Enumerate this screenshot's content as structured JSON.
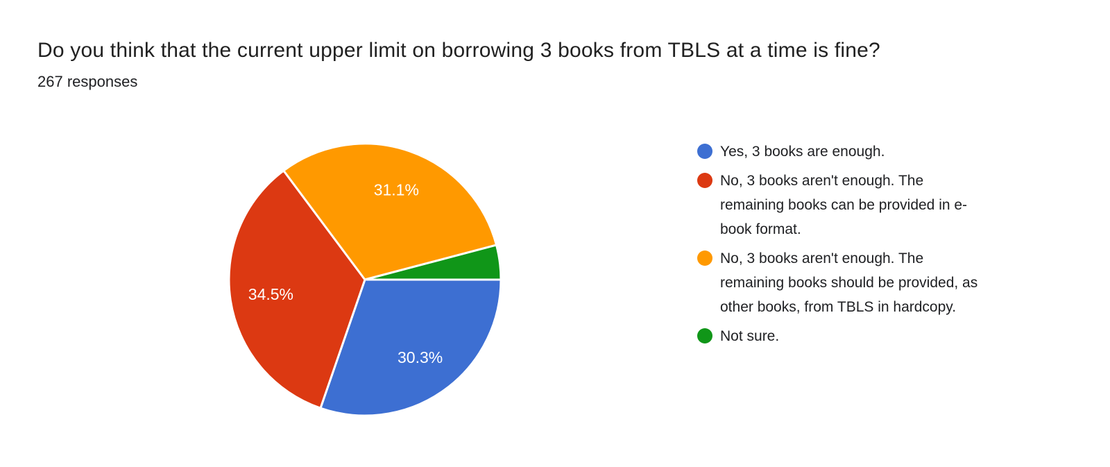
{
  "chart_data": {
    "type": "pie",
    "title": "Do you think that the current upper limit on borrowing 3 books from TBLS at a time is fine?",
    "subtitle": "267 responses",
    "legend_position": "right",
    "start_angle_deg": 90,
    "direction": "clockwise",
    "background_color": "#ffffff",
    "slice_border_color": "#ffffff",
    "slice_label_color": "#ffffff",
    "label_radius_fraction": 0.7,
    "series": [
      {
        "name": "Yes, 3 books are enough.",
        "value_pct": 30.3,
        "color": "#3D6FD2",
        "slice_label": "30.3%",
        "legend_lines": [
          "Yes, 3 books are enough."
        ]
      },
      {
        "name": "No, 3 books aren't enough. The remaining books can be provided in e-book format.",
        "value_pct": 34.5,
        "color": "#DC3912",
        "slice_label": "34.5%",
        "legend_lines": [
          "No, 3 books aren't enough. The",
          "remaining books can be provided in e-",
          "book format."
        ]
      },
      {
        "name": "No, 3 books aren't enough. The remaining books should be provided, as other books, from TBLS in hardcopy.",
        "value_pct": 31.1,
        "color": "#FF9900",
        "slice_label": "31.1%",
        "legend_lines": [
          "No, 3 books aren't enough. The",
          "remaining books should be provided, as",
          "other books, from TBLS in hardcopy."
        ]
      },
      {
        "name": "Not sure.",
        "value_pct": 4.1,
        "color": "#109618",
        "slice_label": "",
        "legend_lines": [
          "Not sure."
        ]
      }
    ]
  }
}
